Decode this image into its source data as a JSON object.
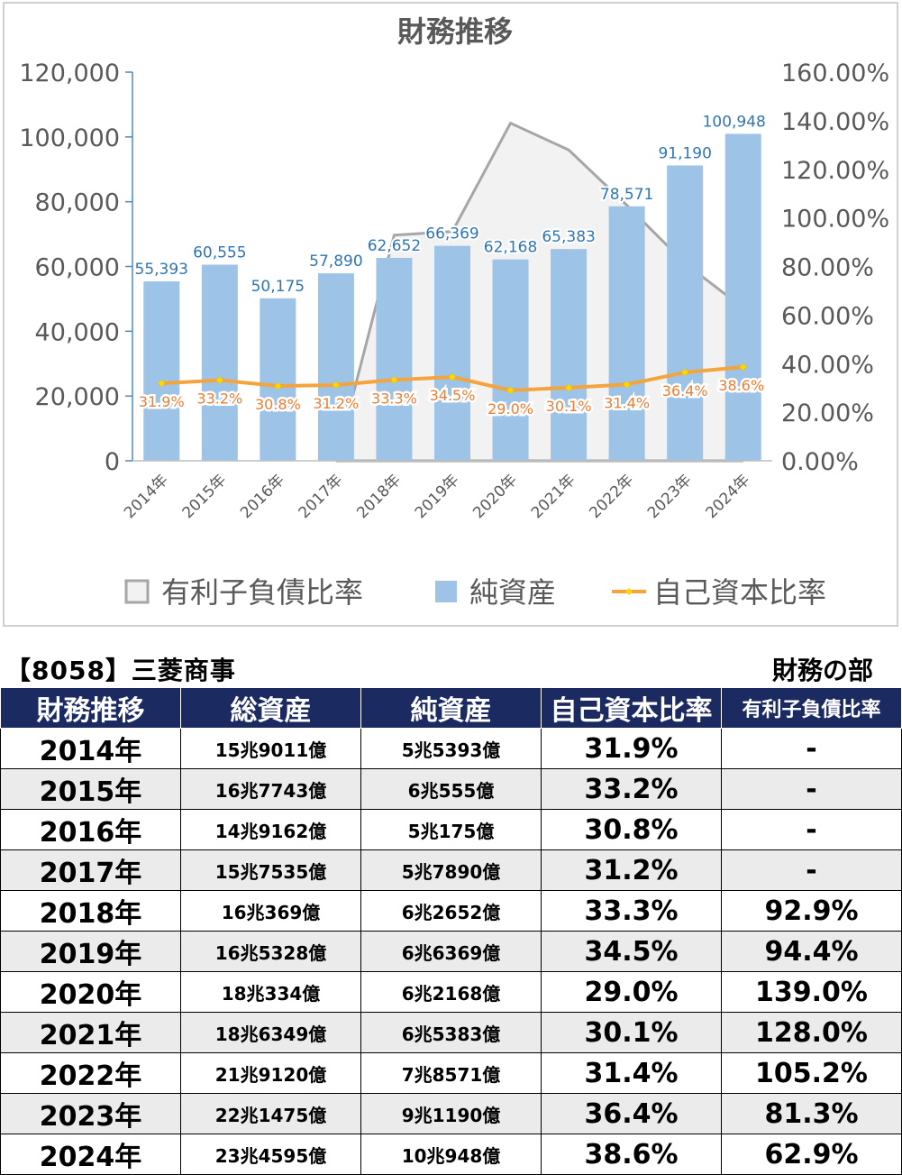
{
  "chart_data": {
    "type": "bar",
    "title": "財務推移",
    "categories": [
      "2014年",
      "2015年",
      "2016年",
      "2017年",
      "2018年",
      "2019年",
      "2020年",
      "2021年",
      "2022年",
      "2023年",
      "2024年"
    ],
    "series": [
      {
        "name": "有利子負債比率",
        "kind": "area",
        "axis": "right",
        "values": [
          null,
          null,
          null,
          null,
          92.9,
          94.4,
          139.0,
          128.0,
          105.2,
          81.3,
          62.9
        ],
        "color": "#a6a6a6"
      },
      {
        "name": "純資産",
        "kind": "bar",
        "axis": "left",
        "values": [
          55393,
          60555,
          50175,
          57890,
          62652,
          66369,
          62168,
          65383,
          78571,
          91190,
          100948
        ],
        "labels": [
          "55,393",
          "60,555",
          "50,175",
          "57,890",
          "62,652",
          "66,369",
          "62,168",
          "65,383",
          "78,571",
          "91,190",
          "100,948"
        ],
        "color": "#9dc3e6"
      },
      {
        "name": "自己資本比率",
        "kind": "line",
        "axis": "right",
        "values": [
          31.9,
          33.2,
          30.8,
          31.2,
          33.3,
          34.5,
          29.0,
          30.1,
          31.4,
          36.4,
          38.6
        ],
        "labels": [
          "31.9%",
          "33.2%",
          "30.8%",
          "31.2%",
          "33.3%",
          "34.5%",
          "29.0%",
          "30.1%",
          "31.4%",
          "36.4%",
          "38.6%"
        ],
        "color": "#f4a43c"
      }
    ],
    "ylim_left": [
      0,
      120000
    ],
    "ylim_right": [
      0,
      160
    ],
    "y_ticks_left": [
      "0",
      "20,000",
      "40,000",
      "60,000",
      "80,000",
      "100,000",
      "120,000"
    ],
    "y_ticks_right": [
      "0.00%",
      "20.00%",
      "40.00%",
      "60.00%",
      "80.00%",
      "100.00%",
      "120.00%",
      "140.00%",
      "160.00%"
    ],
    "legend": "bottom",
    "grid": false
  },
  "table": {
    "stock_title": "【8058】三菱商事",
    "section_label": "財務の部",
    "headers": [
      "財務推移",
      "総資産",
      "純資産",
      "自己資本比率",
      "有利子負債比率"
    ],
    "rows": [
      [
        "2014年",
        "15兆9011億",
        "5兆5393億",
        "31.9%",
        "-"
      ],
      [
        "2015年",
        "16兆7743億",
        "6兆555億",
        "33.2%",
        "-"
      ],
      [
        "2016年",
        "14兆9162億",
        "5兆175億",
        "30.8%",
        "-"
      ],
      [
        "2017年",
        "15兆7535億",
        "5兆7890億",
        "31.2%",
        "-"
      ],
      [
        "2018年",
        "16兆369億",
        "6兆2652億",
        "33.3%",
        "92.9%"
      ],
      [
        "2019年",
        "16兆5328億",
        "6兆6369億",
        "34.5%",
        "94.4%"
      ],
      [
        "2020年",
        "18兆334億",
        "6兆2168億",
        "29.0%",
        "139.0%"
      ],
      [
        "2021年",
        "18兆6349億",
        "6兆5383億",
        "30.1%",
        "128.0%"
      ],
      [
        "2022年",
        "21兆9120億",
        "7兆8571億",
        "31.4%",
        "105.2%"
      ],
      [
        "2023年",
        "22兆1475億",
        "9兆1190億",
        "36.4%",
        "81.3%"
      ],
      [
        "2024年",
        "23兆4595億",
        "10兆948億",
        "38.6%",
        "62.9%"
      ]
    ]
  }
}
